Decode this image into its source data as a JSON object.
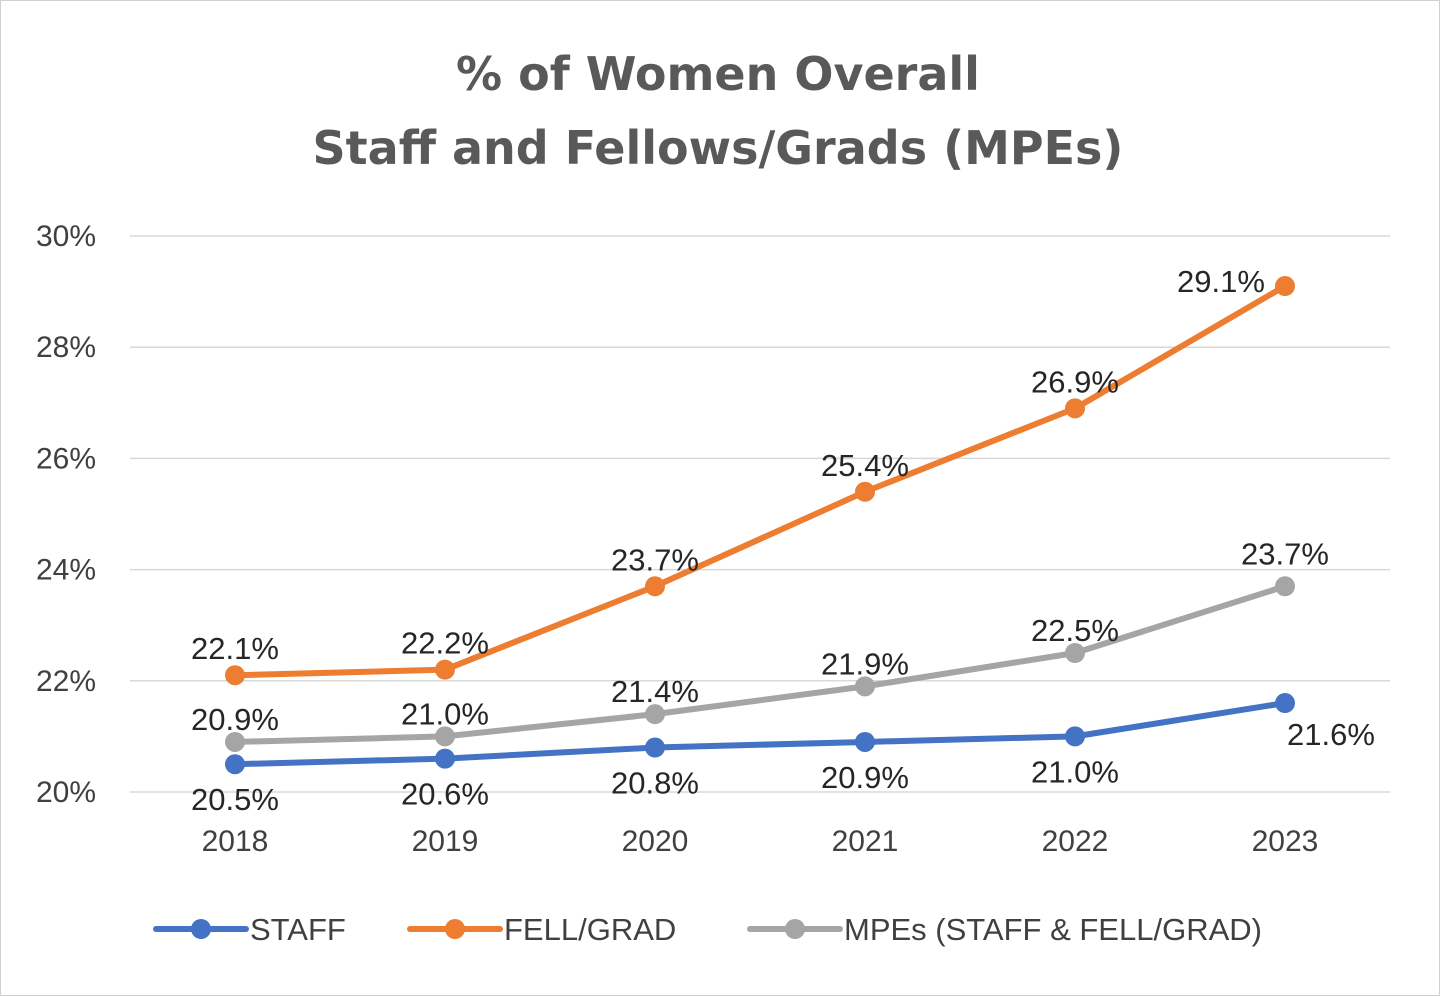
{
  "chart_data": {
    "type": "line",
    "title_lines": [
      "% of Women Overall",
      "Staff and Fellows/Grads (MPEs)"
    ],
    "categories": [
      "2018",
      "2019",
      "2020",
      "2021",
      "2022",
      "2023"
    ],
    "ylim": [
      0.2,
      0.3
    ],
    "yticks": [
      0.2,
      0.22,
      0.24,
      0.26,
      0.28,
      0.3
    ],
    "ytick_labels": [
      "20%",
      "22%",
      "24%",
      "26%",
      "28%",
      "30%"
    ],
    "grid": true,
    "legend_position": "bottom",
    "series": [
      {
        "name": "STAFF",
        "color": "#4472C4",
        "values": [
          0.205,
          0.206,
          0.208,
          0.209,
          0.21,
          0.216
        ],
        "labels": [
          "20.5%",
          "20.6%",
          "20.8%",
          "20.9%",
          "21.0%",
          "21.6%"
        ]
      },
      {
        "name": "FELL/GRAD",
        "color": "#ED7D31",
        "values": [
          0.221,
          0.222,
          0.237,
          0.254,
          0.269,
          0.291
        ],
        "labels": [
          "22.1%",
          "22.2%",
          "23.7%",
          "25.4%",
          "26.9%",
          "29.1%"
        ]
      },
      {
        "name": "MPEs (STAFF & FELL/GRAD)",
        "color": "#A5A5A5",
        "values": [
          0.209,
          0.21,
          0.214,
          0.219,
          0.225,
          0.237
        ],
        "labels": [
          "20.9%",
          "21.0%",
          "21.4%",
          "21.9%",
          "22.5%",
          "23.7%"
        ]
      }
    ]
  }
}
